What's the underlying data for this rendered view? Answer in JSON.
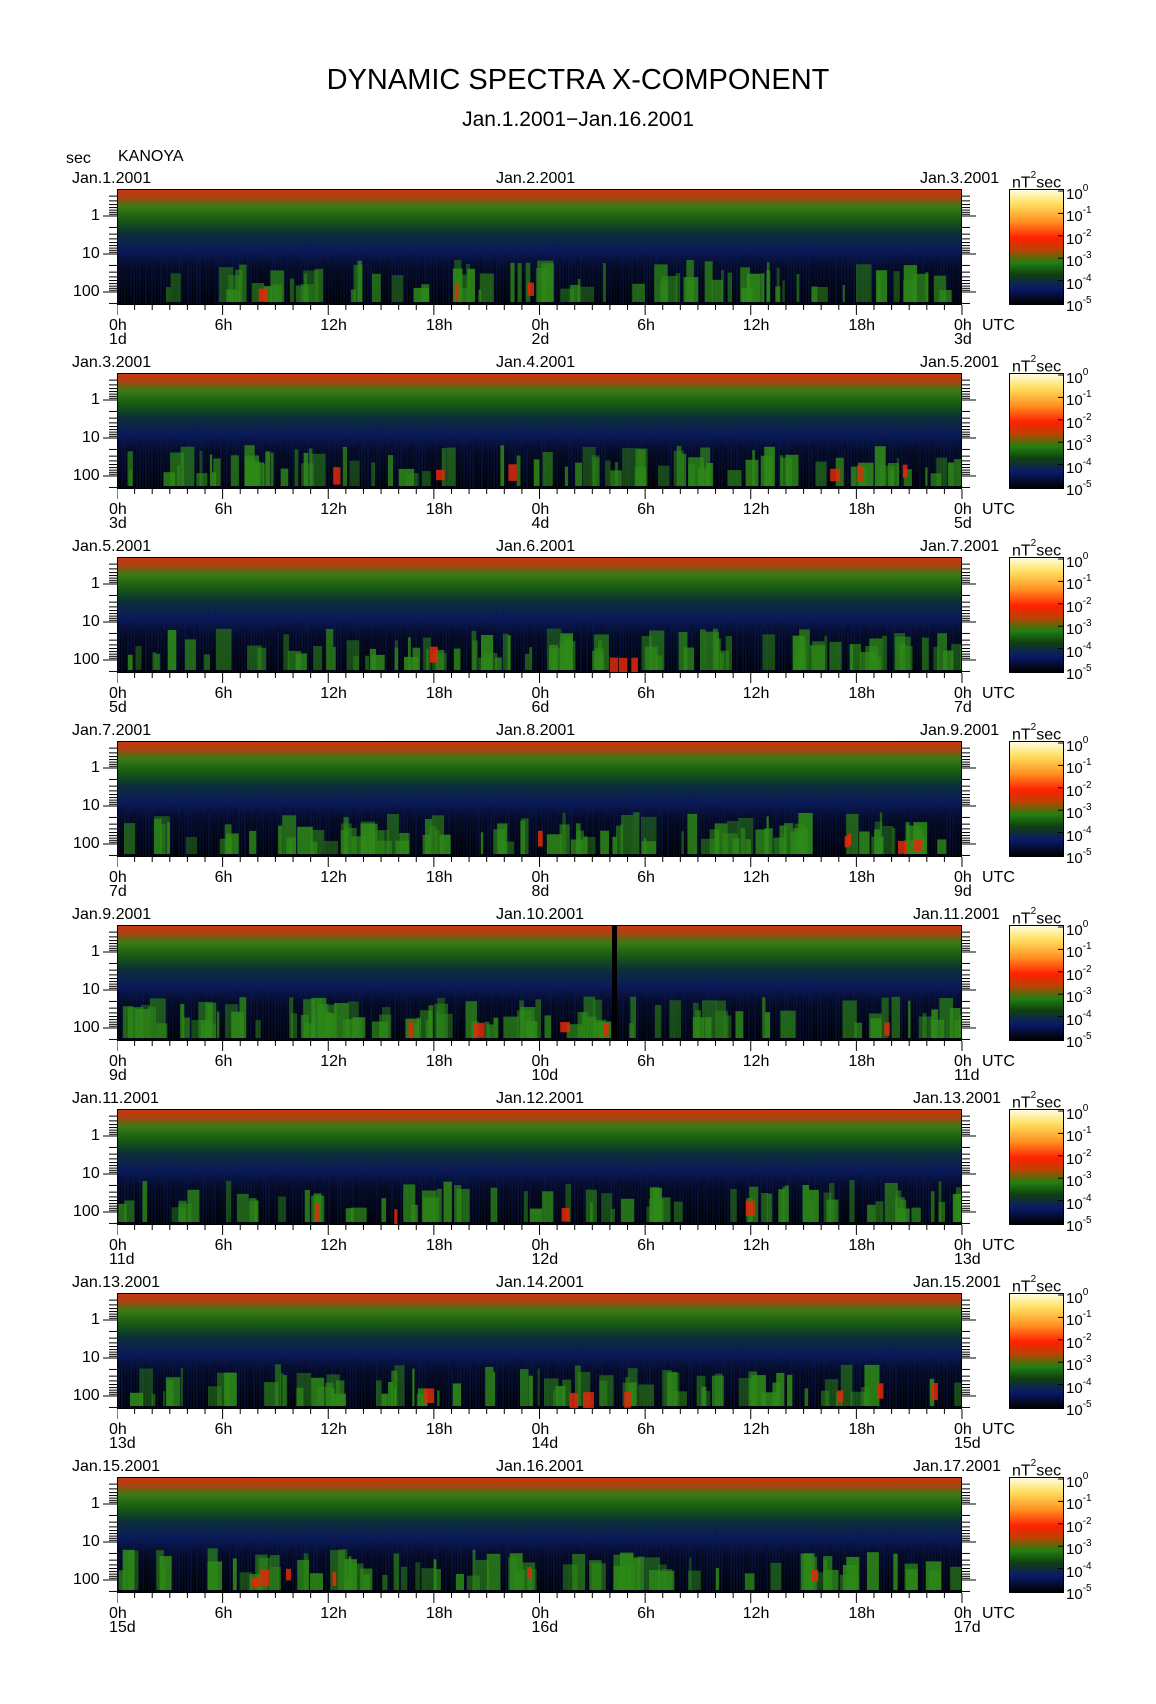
{
  "title": "DYNAMIC SPECTRA X-COMPONENT",
  "subtitle": "Jan.1.2001−Jan.16.2001",
  "y_unit_label": "sec",
  "station": "KANOYA",
  "colorbar_unit": "nT²sec",
  "utc_label": "UTC",
  "colorbar_labels": [
    "10⁰",
    "10⁻¹",
    "10⁻²",
    "10⁻³",
    "10⁻⁴",
    "10⁻⁵"
  ],
  "colorbar_bases": [
    "10",
    "10",
    "10",
    "10",
    "10",
    "10"
  ],
  "colorbar_exps": [
    "0",
    "-1",
    "-2",
    "-3",
    "-4",
    "-5"
  ],
  "colors": {
    "background": "#000000",
    "low_noise": "#0a1a6a",
    "mid": "#208010",
    "high": "#ff2000",
    "max": "#fffde0"
  },
  "chart_data": {
    "type": "heatmap",
    "panels": [
      {
        "left_date": "Jan.1.2001",
        "mid_date": "Jan.2.2001",
        "right_date": "Jan.3.2001",
        "day_labels": [
          "1d",
          "2d",
          "3d"
        ]
      },
      {
        "left_date": "Jan.3.2001",
        "mid_date": "Jan.4.2001",
        "right_date": "Jan.5.2001",
        "day_labels": [
          "3d",
          "4d",
          "5d"
        ]
      },
      {
        "left_date": "Jan.5.2001",
        "mid_date": "Jan.6.2001",
        "right_date": "Jan.7.2001",
        "day_labels": [
          "5d",
          "6d",
          "7d"
        ]
      },
      {
        "left_date": "Jan.7.2001",
        "mid_date": "Jan.8.2001",
        "right_date": "Jan.9.2001",
        "day_labels": [
          "7d",
          "8d",
          "9d"
        ]
      },
      {
        "left_date": "Jan.9.2001",
        "mid_date": "Jan.10.2001",
        "right_date": "Jan.11.2001",
        "day_labels": [
          "9d",
          "10d",
          "11d"
        ]
      },
      {
        "left_date": "Jan.11.2001",
        "mid_date": "Jan.12.2001",
        "right_date": "Jan.13.2001",
        "day_labels": [
          "11d",
          "12d",
          "13d"
        ]
      },
      {
        "left_date": "Jan.13.2001",
        "mid_date": "Jan.14.2001",
        "right_date": "Jan.15.2001",
        "day_labels": [
          "13d",
          "14d",
          "15d"
        ]
      },
      {
        "left_date": "Jan.15.2001",
        "mid_date": "Jan.16.2001",
        "right_date": "Jan.17.2001",
        "day_labels": [
          "15d",
          "16d",
          "17d"
        ]
      }
    ],
    "x_tick_labels": [
      "0h",
      "6h",
      "12h",
      "18h",
      "0h",
      "6h",
      "12h",
      "18h",
      "0h"
    ],
    "y_tick_labels": [
      "1",
      "10",
      "100"
    ],
    "y_scale": "log",
    "colorbar_range": [
      "10^-5",
      "10^0"
    ],
    "colorscale": "log"
  }
}
